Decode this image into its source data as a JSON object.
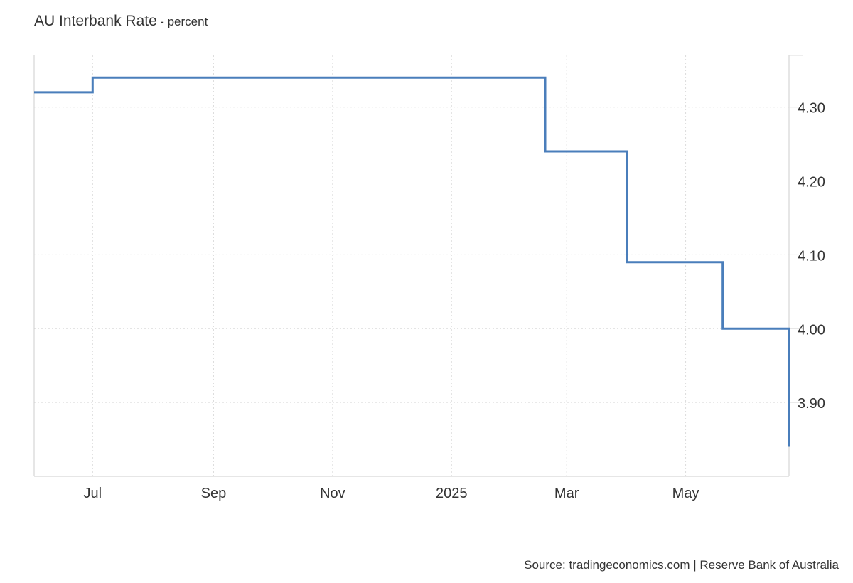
{
  "chart_data": {
    "type": "line",
    "title": "AU Interbank Rate",
    "subtitle": "- percent",
    "xlabel": "",
    "ylabel": "",
    "x": [
      "2024-06-01",
      "2024-07-01",
      "2025-02-18",
      "2025-04-01",
      "2025-05-20",
      "2025-06-23"
    ],
    "series": [
      {
        "values": [
          4.32,
          4.34,
          4.24,
          4.09,
          4.0,
          3.84
        ]
      }
    ],
    "step": true,
    "xlim": [
      "2024-06-01",
      "2025-06-23"
    ],
    "ylim": [
      3.8,
      4.37
    ],
    "x_ticks": [
      {
        "date": "2024-07-01",
        "label": "Jul"
      },
      {
        "date": "2024-09-01",
        "label": "Sep"
      },
      {
        "date": "2024-11-01",
        "label": "Nov"
      },
      {
        "date": "2025-01-01",
        "label": "2025"
      },
      {
        "date": "2025-03-01",
        "label": "Mar"
      },
      {
        "date": "2025-05-01",
        "label": "May"
      }
    ],
    "y_ticks": [
      {
        "value": 3.9,
        "label": "3.90"
      },
      {
        "value": 4.0,
        "label": "4.00"
      },
      {
        "value": 4.1,
        "label": "4.10"
      },
      {
        "value": 4.2,
        "label": "4.20"
      },
      {
        "value": 4.3,
        "label": "4.30"
      }
    ],
    "y_axis_side": "right",
    "grid": true,
    "line_color": "#4a7ebb",
    "grid_color": "#dcdcdc",
    "source": "Source: tradingeconomics.com | Reserve Bank of Australia"
  }
}
